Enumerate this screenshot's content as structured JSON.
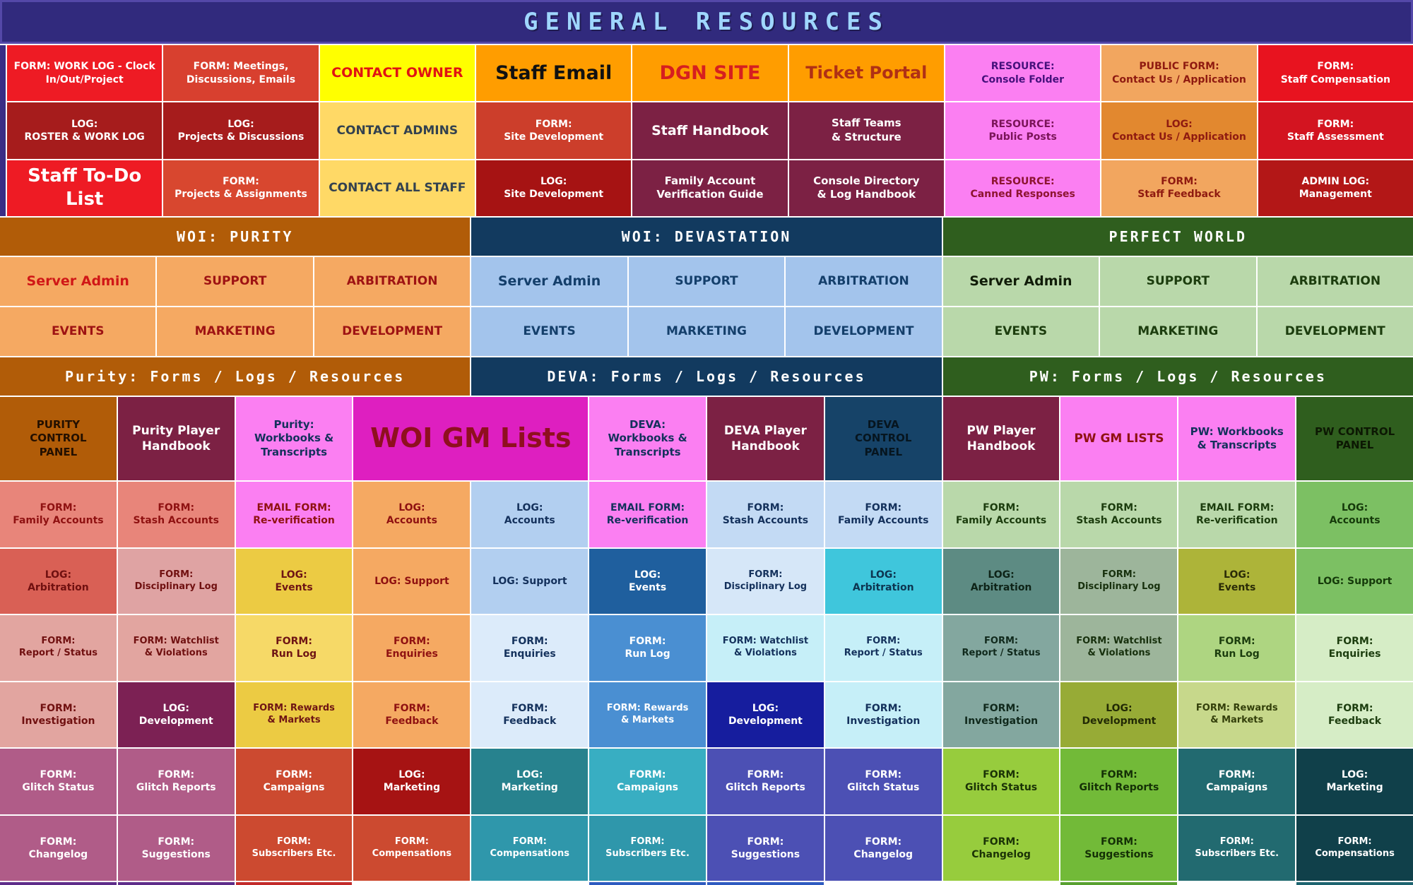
{
  "header": {
    "title": "GENERAL RESOURCES",
    "bg": "#312a7d",
    "fg": "#9fd6ff",
    "border": "#5448a8"
  },
  "frame_color": "#3a2d85",
  "top_grid": {
    "rows": [
      [
        {
          "label": "FORM:  WORK LOG - Clock\nIn/Out/Project",
          "bg": "#ee1b24",
          "fg": "#ffffff",
          "size": 14
        },
        {
          "label": "FORM: Meetings,\nDiscussions, Emails",
          "bg": "#d8402f",
          "fg": "#ffffff",
          "size": 14
        },
        {
          "label": "CONTACT OWNER",
          "bg": "#ffff00",
          "fg": "#e01313",
          "size": 19
        },
        {
          "label": "Staff Email",
          "bg": "#ff9d00",
          "fg": "#111111",
          "size": 27
        },
        {
          "label": "DGN SITE",
          "bg": "#ff9d00",
          "fg": "#d61f1f",
          "size": 27
        },
        {
          "label": "Ticket Portal",
          "bg": "#ff9d00",
          "fg": "#b03015",
          "size": 24
        },
        {
          "label": "RESOURCE:\nConsole Folder",
          "bg": "#fb7ff2",
          "fg": "#46117c",
          "size": 14
        },
        {
          "label": "PUBLIC FORM:\nContact Us / Application",
          "bg": "#f2a65f",
          "fg": "#8f1a10",
          "size": 14
        },
        {
          "label": "FORM:\nStaff Compensation",
          "bg": "#e8131f",
          "fg": "#ffffff",
          "size": 14
        }
      ],
      [
        {
          "label": "LOG:\nROSTER & WORK LOG",
          "bg": "#a61c1c",
          "fg": "#ffffff",
          "size": 14
        },
        {
          "label": "LOG:\nProjects & Discussions",
          "bg": "#a61c1c",
          "fg": "#ffffff",
          "size": 14
        },
        {
          "label": "CONTACT ADMINS",
          "bg": "#ffd966",
          "fg": "#33414f",
          "size": 17
        },
        {
          "label": "FORM:\nSite Development",
          "bg": "#cc3e2b",
          "fg": "#ffffff",
          "size": 14
        },
        {
          "label": "Staff Handbook",
          "bg": "#7c2144",
          "fg": "#ffffff",
          "size": 19
        },
        {
          "label": "Staff Teams\n& Structure",
          "bg": "#7c2144",
          "fg": "#ffffff",
          "size": 15
        },
        {
          "label": "RESOURCE:\nPublic Posts",
          "bg": "#fb7ff2",
          "fg": "#7a1458",
          "size": 14
        },
        {
          "label": "LOG:\nContact Us / Application",
          "bg": "#e2882f",
          "fg": "#8f1a10",
          "size": 14
        },
        {
          "label": "FORM:\nStaff Assessment",
          "bg": "#d31420",
          "fg": "#ffffff",
          "size": 14
        }
      ],
      [
        {
          "label": "Staff To-Do List",
          "bg": "#ee1b24",
          "fg": "#ffffff",
          "size": 26
        },
        {
          "label": "FORM:\nProjects & Assignments",
          "bg": "#d8472f",
          "fg": "#ffffff",
          "size": 14
        },
        {
          "label": "CONTACT ALL STAFF",
          "bg": "#ffd966",
          "fg": "#33414f",
          "size": 17
        },
        {
          "label": "LOG:\nSite Development",
          "bg": "#a61313",
          "fg": "#ffffff",
          "size": 14
        },
        {
          "label": "Family Account\nVerification Guide",
          "bg": "#7c2144",
          "fg": "#ffffff",
          "size": 15
        },
        {
          "label": "Console Directory\n& Log Handbook",
          "bg": "#7c2144",
          "fg": "#ffffff",
          "size": 15
        },
        {
          "label": "RESOURCE:\nCanned Responses",
          "bg": "#fb7ff2",
          "fg": "#8d1430",
          "size": 14
        },
        {
          "label": "FORM:\nStaff Feedback",
          "bg": "#f2a65f",
          "fg": "#8f1a10",
          "size": 14
        },
        {
          "label": "ADMIN LOG:\nManagement",
          "bg": "#b31717",
          "fg": "#ffffff",
          "size": 14
        }
      ]
    ]
  },
  "sections_top": [
    {
      "label": "WOI: PURITY",
      "bg": "#b15c08",
      "fg": "#ffffff"
    },
    {
      "label": "WOI: DEVASTATION",
      "bg": "#123a5f",
      "fg": "#ffffff"
    },
    {
      "label": "PERFECT WORLD",
      "bg": "#2f5e1e",
      "fg": "#ffffff"
    }
  ],
  "departments": {
    "rows": [
      [
        {
          "label": "Server Admin",
          "bg": "#f5a962",
          "fg": "#d01717",
          "size": 19
        },
        {
          "label": "SUPPORT",
          "bg": "#f5a962",
          "fg": "#9e1313",
          "size": 17
        },
        {
          "label": "ARBITRATION",
          "bg": "#f5a962",
          "fg": "#9e1313",
          "size": 17
        },
        {
          "label": "Server Admin",
          "bg": "#a3c4ec",
          "fg": "#143f6b",
          "size": 19
        },
        {
          "label": "SUPPORT",
          "bg": "#a3c4ec",
          "fg": "#143f6b",
          "size": 17
        },
        {
          "label": "ARBITRATION",
          "bg": "#a3c4ec",
          "fg": "#143f6b",
          "size": 17
        },
        {
          "label": "Server Admin",
          "bg": "#b9d8aa",
          "fg": "#101c08",
          "size": 19
        },
        {
          "label": "SUPPORT",
          "bg": "#b9d8aa",
          "fg": "#1c3d0e",
          "size": 17
        },
        {
          "label": "ARBITRATION",
          "bg": "#b9d8aa",
          "fg": "#1c3d0e",
          "size": 17
        }
      ],
      [
        {
          "label": "EVENTS",
          "bg": "#f5a962",
          "fg": "#9e1313",
          "size": 17
        },
        {
          "label": "MARKETING",
          "bg": "#f5a962",
          "fg": "#9e1313",
          "size": 17
        },
        {
          "label": "DEVELOPMENT",
          "bg": "#f5a962",
          "fg": "#9e1313",
          "size": 17
        },
        {
          "label": "EVENTS",
          "bg": "#a3c4ec",
          "fg": "#143f6b",
          "size": 17
        },
        {
          "label": "MARKETING",
          "bg": "#a3c4ec",
          "fg": "#143f6b",
          "size": 17
        },
        {
          "label": "DEVELOPMENT",
          "bg": "#a3c4ec",
          "fg": "#143f6b",
          "size": 17
        },
        {
          "label": "EVENTS",
          "bg": "#b9d8aa",
          "fg": "#1c3d0e",
          "size": 17
        },
        {
          "label": "MARKETING",
          "bg": "#b9d8aa",
          "fg": "#1c3d0e",
          "size": 17
        },
        {
          "label": "DEVELOPMENT",
          "bg": "#b9d8aa",
          "fg": "#1c3d0e",
          "size": 17
        }
      ]
    ]
  },
  "sections_bottom": [
    {
      "label": "Purity: Forms / Logs / Resources",
      "bg": "#b15c08",
      "fg": "#ffffff"
    },
    {
      "label": "DEVA: Forms / Logs / Resources",
      "bg": "#123a5f",
      "fg": "#ffffff"
    },
    {
      "label": "PW: Forms / Logs / Resources",
      "bg": "#2f5e1e",
      "fg": "#ffffff"
    }
  ],
  "panels_row": [
    {
      "label": "PURITY\nCONTROL\nPANEL",
      "bg": "#b15c08",
      "fg": "#241000",
      "size": 15
    },
    {
      "label": "Purity Player\nHandbook",
      "bg": "#7c2144",
      "fg": "#ffffff",
      "size": 17
    },
    {
      "label": "Purity:\nWorkbooks &\nTranscripts",
      "bg": "#fb7ff2",
      "fg": "#14315c",
      "size": 15
    },
    {
      "label": "WOI GM Lists",
      "bg": "#de1fc0",
      "fg": "#8f0f1f",
      "size": 38,
      "span": 2
    },
    {
      "label": "DEVA:\nWorkbooks &\nTranscripts",
      "bg": "#fb7ff2",
      "fg": "#14315c",
      "size": 15
    },
    {
      "label": "DEVA Player\nHandbook",
      "bg": "#7c2144",
      "fg": "#ffffff",
      "size": 17
    },
    {
      "label": "DEVA\nCONTROL\nPANEL",
      "bg": "#164368",
      "fg": "#06151f",
      "size": 15
    },
    {
      "label": "PW Player\nHandbook",
      "bg": "#7c2144",
      "fg": "#ffffff",
      "size": 17
    },
    {
      "label": "PW GM LISTS",
      "bg": "#fb7ff2",
      "fg": "#8f1111",
      "size": 17
    },
    {
      "label": "PW: Workbooks\n& Transcripts",
      "bg": "#fb7ff2",
      "fg": "#14315c",
      "size": 15
    },
    {
      "label": "PW CONTROL\nPANEL",
      "bg": "#2f5e1e",
      "fg": "#0c1803",
      "size": 15
    }
  ],
  "grid_rows": [
    [
      {
        "label": "FORM:\nFamily Accounts",
        "bg": "#e8857a",
        "fg": "#8f1111",
        "size": 14
      },
      {
        "label": "FORM:\nStash Accounts",
        "bg": "#e8857a",
        "fg": "#8f1111",
        "size": 14
      },
      {
        "label": "EMAIL FORM:\nRe-verification",
        "bg": "#fb7ff2",
        "fg": "#8f1111",
        "size": 14
      },
      {
        "label": "LOG:\nAccounts",
        "bg": "#f5a962",
        "fg": "#8f1111",
        "size": 14
      },
      {
        "label": "LOG:\nAccounts",
        "bg": "#b2cff0",
        "fg": "#14315c",
        "size": 14
      },
      {
        "label": "EMAIL FORM:\nRe-verification",
        "bg": "#fb7ff2",
        "fg": "#14315c",
        "size": 14
      },
      {
        "label": "FORM:\nStash Accounts",
        "bg": "#c3daf4",
        "fg": "#14315c",
        "size": 14
      },
      {
        "label": "FORM:\nFamily Accounts",
        "bg": "#c3daf4",
        "fg": "#14315c",
        "size": 14
      },
      {
        "label": "FORM:\nFamily Accounts",
        "bg": "#b9d8aa",
        "fg": "#1c3d0e",
        "size": 14
      },
      {
        "label": "FORM:\nStash Accounts",
        "bg": "#b9d8aa",
        "fg": "#1c3d0e",
        "size": 14
      },
      {
        "label": "EMAIL FORM:\nRe-verification",
        "bg": "#b9d8aa",
        "fg": "#1c3d0e",
        "size": 14
      },
      {
        "label": "LOG:\nAccounts",
        "bg": "#7cc063",
        "fg": "#153a0a",
        "size": 14
      }
    ],
    [
      {
        "label": "LOG:\nArbitration",
        "bg": "#d96055",
        "fg": "#701010",
        "size": 14
      },
      {
        "label": "FORM:\nDisciplinary Log",
        "bg": "#dfa3a3",
        "fg": "#701010",
        "size": 13
      },
      {
        "label": "LOG:\nEvents",
        "bg": "#eccb43",
        "fg": "#6e1414",
        "size": 14
      },
      {
        "label": "LOG: Support",
        "bg": "#f5a962",
        "fg": "#8f1111",
        "size": 14
      },
      {
        "label": "LOG: Support",
        "bg": "#b2cff0",
        "fg": "#14315c",
        "size": 14
      },
      {
        "label": "LOG:\nEvents",
        "bg": "#1f5f9e",
        "fg": "#ffffff",
        "size": 14
      },
      {
        "label": "FORM:\nDisciplinary Log",
        "bg": "#d6e7f8",
        "fg": "#14315c",
        "size": 13
      },
      {
        "label": "LOG:\nArbitration",
        "bg": "#3fc6dc",
        "fg": "#0d3550",
        "size": 14
      },
      {
        "label": "LOG:\nArbitration",
        "bg": "#5d8b83",
        "fg": "#0e2418",
        "size": 14
      },
      {
        "label": "FORM:\nDisciplinary Log",
        "bg": "#9db59b",
        "fg": "#17300d",
        "size": 13
      },
      {
        "label": "LOG:\nEvents",
        "bg": "#adb439",
        "fg": "#2b2c07",
        "size": 14
      },
      {
        "label": "LOG: Support",
        "bg": "#7cc063",
        "fg": "#153a0a",
        "size": 14
      }
    ],
    [
      {
        "label": "FORM:\nReport / Status",
        "bg": "#e2a5a0",
        "fg": "#701010",
        "size": 13
      },
      {
        "label": "FORM: Watchlist\n& Violations",
        "bg": "#e2a5a0",
        "fg": "#701010",
        "size": 13
      },
      {
        "label": "FORM:\nRun Log",
        "bg": "#f6d967",
        "fg": "#6e1414",
        "size": 14
      },
      {
        "label": "FORM:\nEnquiries",
        "bg": "#f5a962",
        "fg": "#8f1111",
        "size": 14
      },
      {
        "label": "FORM:\nEnquiries",
        "bg": "#dcebfa",
        "fg": "#14315c",
        "size": 14
      },
      {
        "label": "FORM:\nRun Log",
        "bg": "#4a8fd2",
        "fg": "#ffffff",
        "size": 14
      },
      {
        "label": "FORM: Watchlist\n& Violations",
        "bg": "#c6eff8",
        "fg": "#14315c",
        "size": 13
      },
      {
        "label": "FORM:\nReport / Status",
        "bg": "#c6eff8",
        "fg": "#14315c",
        "size": 13
      },
      {
        "label": "FORM:\nReport / Status",
        "bg": "#83a79f",
        "fg": "#10291c",
        "size": 13
      },
      {
        "label": "FORM: Watchlist\n& Violations",
        "bg": "#9db59b",
        "fg": "#17300d",
        "size": 13
      },
      {
        "label": "FORM:\nRun Log",
        "bg": "#aed581",
        "fg": "#1c3d0e",
        "size": 14
      },
      {
        "label": "FORM:\nEnquiries",
        "bg": "#d6edc6",
        "fg": "#1c3d0e",
        "size": 14
      }
    ],
    [
      {
        "label": "FORM:\nInvestigation",
        "bg": "#e2a5a0",
        "fg": "#701010",
        "size": 14
      },
      {
        "label": "LOG:\nDevelopment",
        "bg": "#7c2154",
        "fg": "#ffffff",
        "size": 14
      },
      {
        "label": "FORM: Rewards\n& Markets",
        "bg": "#eccb43",
        "fg": "#6e1414",
        "size": 13
      },
      {
        "label": "FORM:\nFeedback",
        "bg": "#f5a962",
        "fg": "#8f1111",
        "size": 14
      },
      {
        "label": "FORM:\nFeedback",
        "bg": "#dcebfa",
        "fg": "#14315c",
        "size": 14
      },
      {
        "label": "FORM: Rewards\n& Markets",
        "bg": "#4a8fd2",
        "fg": "#ffffff",
        "size": 13
      },
      {
        "label": "LOG:\nDevelopment",
        "bg": "#161d9e",
        "fg": "#ffffff",
        "size": 14
      },
      {
        "label": "FORM:\nInvestigation",
        "bg": "#c6eff8",
        "fg": "#14315c",
        "size": 14
      },
      {
        "label": "FORM:\nInvestigation",
        "bg": "#83a79f",
        "fg": "#10291c",
        "size": 14
      },
      {
        "label": "LOG:\nDevelopment",
        "bg": "#97ab36",
        "fg": "#222a05",
        "size": 14
      },
      {
        "label": "FORM: Rewards\n& Markets",
        "bg": "#c7d88b",
        "fg": "#333f0a",
        "size": 13
      },
      {
        "label": "FORM:\nFeedback",
        "bg": "#d6edc6",
        "fg": "#1c3d0e",
        "size": 14
      }
    ],
    [
      {
        "label": "FORM:\nGlitch Status",
        "bg": "#b05c88",
        "fg": "#ffffff",
        "size": 14
      },
      {
        "label": "FORM:\nGlitch Reports",
        "bg": "#b05c88",
        "fg": "#ffffff",
        "size": 14
      },
      {
        "label": "FORM:\nCampaigns",
        "bg": "#cc4a30",
        "fg": "#ffffff",
        "size": 14
      },
      {
        "label": "LOG:\nMarketing",
        "bg": "#a61313",
        "fg": "#ffffff",
        "size": 14
      },
      {
        "label": "LOG:\nMarketing",
        "bg": "#27828e",
        "fg": "#ffffff",
        "size": 14
      },
      {
        "label": "FORM:\nCampaigns",
        "bg": "#38aec2",
        "fg": "#ffffff",
        "size": 14
      },
      {
        "label": "FORM:\nGlitch Reports",
        "bg": "#4c50b4",
        "fg": "#ffffff",
        "size": 14
      },
      {
        "label": "FORM:\nGlitch Status",
        "bg": "#4c50b4",
        "fg": "#ffffff",
        "size": 14
      },
      {
        "label": "FORM:\nGlitch Status",
        "bg": "#97cc3d",
        "fg": "#1b3306",
        "size": 14
      },
      {
        "label": "FORM:\nGlitch Reports",
        "bg": "#72ba38",
        "fg": "#143006",
        "size": 14
      },
      {
        "label": "FORM:\nCampaigns",
        "bg": "#226a70",
        "fg": "#ffffff",
        "size": 14
      },
      {
        "label": "LOG:\nMarketing",
        "bg": "#10404a",
        "fg": "#ffffff",
        "size": 14
      }
    ],
    [
      {
        "label": "FORM:\nChangelog",
        "bg": "#b05c88",
        "fg": "#ffffff",
        "size": 14
      },
      {
        "label": "FORM:\nSuggestions",
        "bg": "#b05c88",
        "fg": "#ffffff",
        "size": 14
      },
      {
        "label": "FORM:\nSubscribers Etc.",
        "bg": "#cc4a30",
        "fg": "#ffffff",
        "size": 13
      },
      {
        "label": "FORM:\nCompensations",
        "bg": "#cc4a30",
        "fg": "#ffffff",
        "size": 13
      },
      {
        "label": "FORM:\nCompensations",
        "bg": "#2f97ab",
        "fg": "#ffffff",
        "size": 13
      },
      {
        "label": "FORM:\nSubscribers Etc.",
        "bg": "#2f97ab",
        "fg": "#ffffff",
        "size": 13
      },
      {
        "label": "FORM:\nSuggestions",
        "bg": "#4c50b4",
        "fg": "#ffffff",
        "size": 14
      },
      {
        "label": "FORM:\nChangelog",
        "bg": "#4c50b4",
        "fg": "#ffffff",
        "size": 14
      },
      {
        "label": "FORM:\nChangelog",
        "bg": "#97cc3d",
        "fg": "#1b3306",
        "size": 14
      },
      {
        "label": "FORM:\nSuggestions",
        "bg": "#72ba38",
        "fg": "#143006",
        "size": 14
      },
      {
        "label": "FORM:\nSubscribers Etc.",
        "bg": "#226a70",
        "fg": "#ffffff",
        "size": 13
      },
      {
        "label": "FORM:\nCompensations",
        "bg": "#10404a",
        "fg": "#ffffff",
        "size": 13
      }
    ]
  ],
  "bottom_sliver": [
    "#5e2d8a",
    "#5e2d8a",
    "#c22a2a",
    "#ffffff",
    "#ffffff",
    "#2e5bc0",
    "#2e5bc0",
    "#ffffff",
    "#ffffff",
    "#58a030",
    "#ffffff",
    "#1e6470"
  ]
}
